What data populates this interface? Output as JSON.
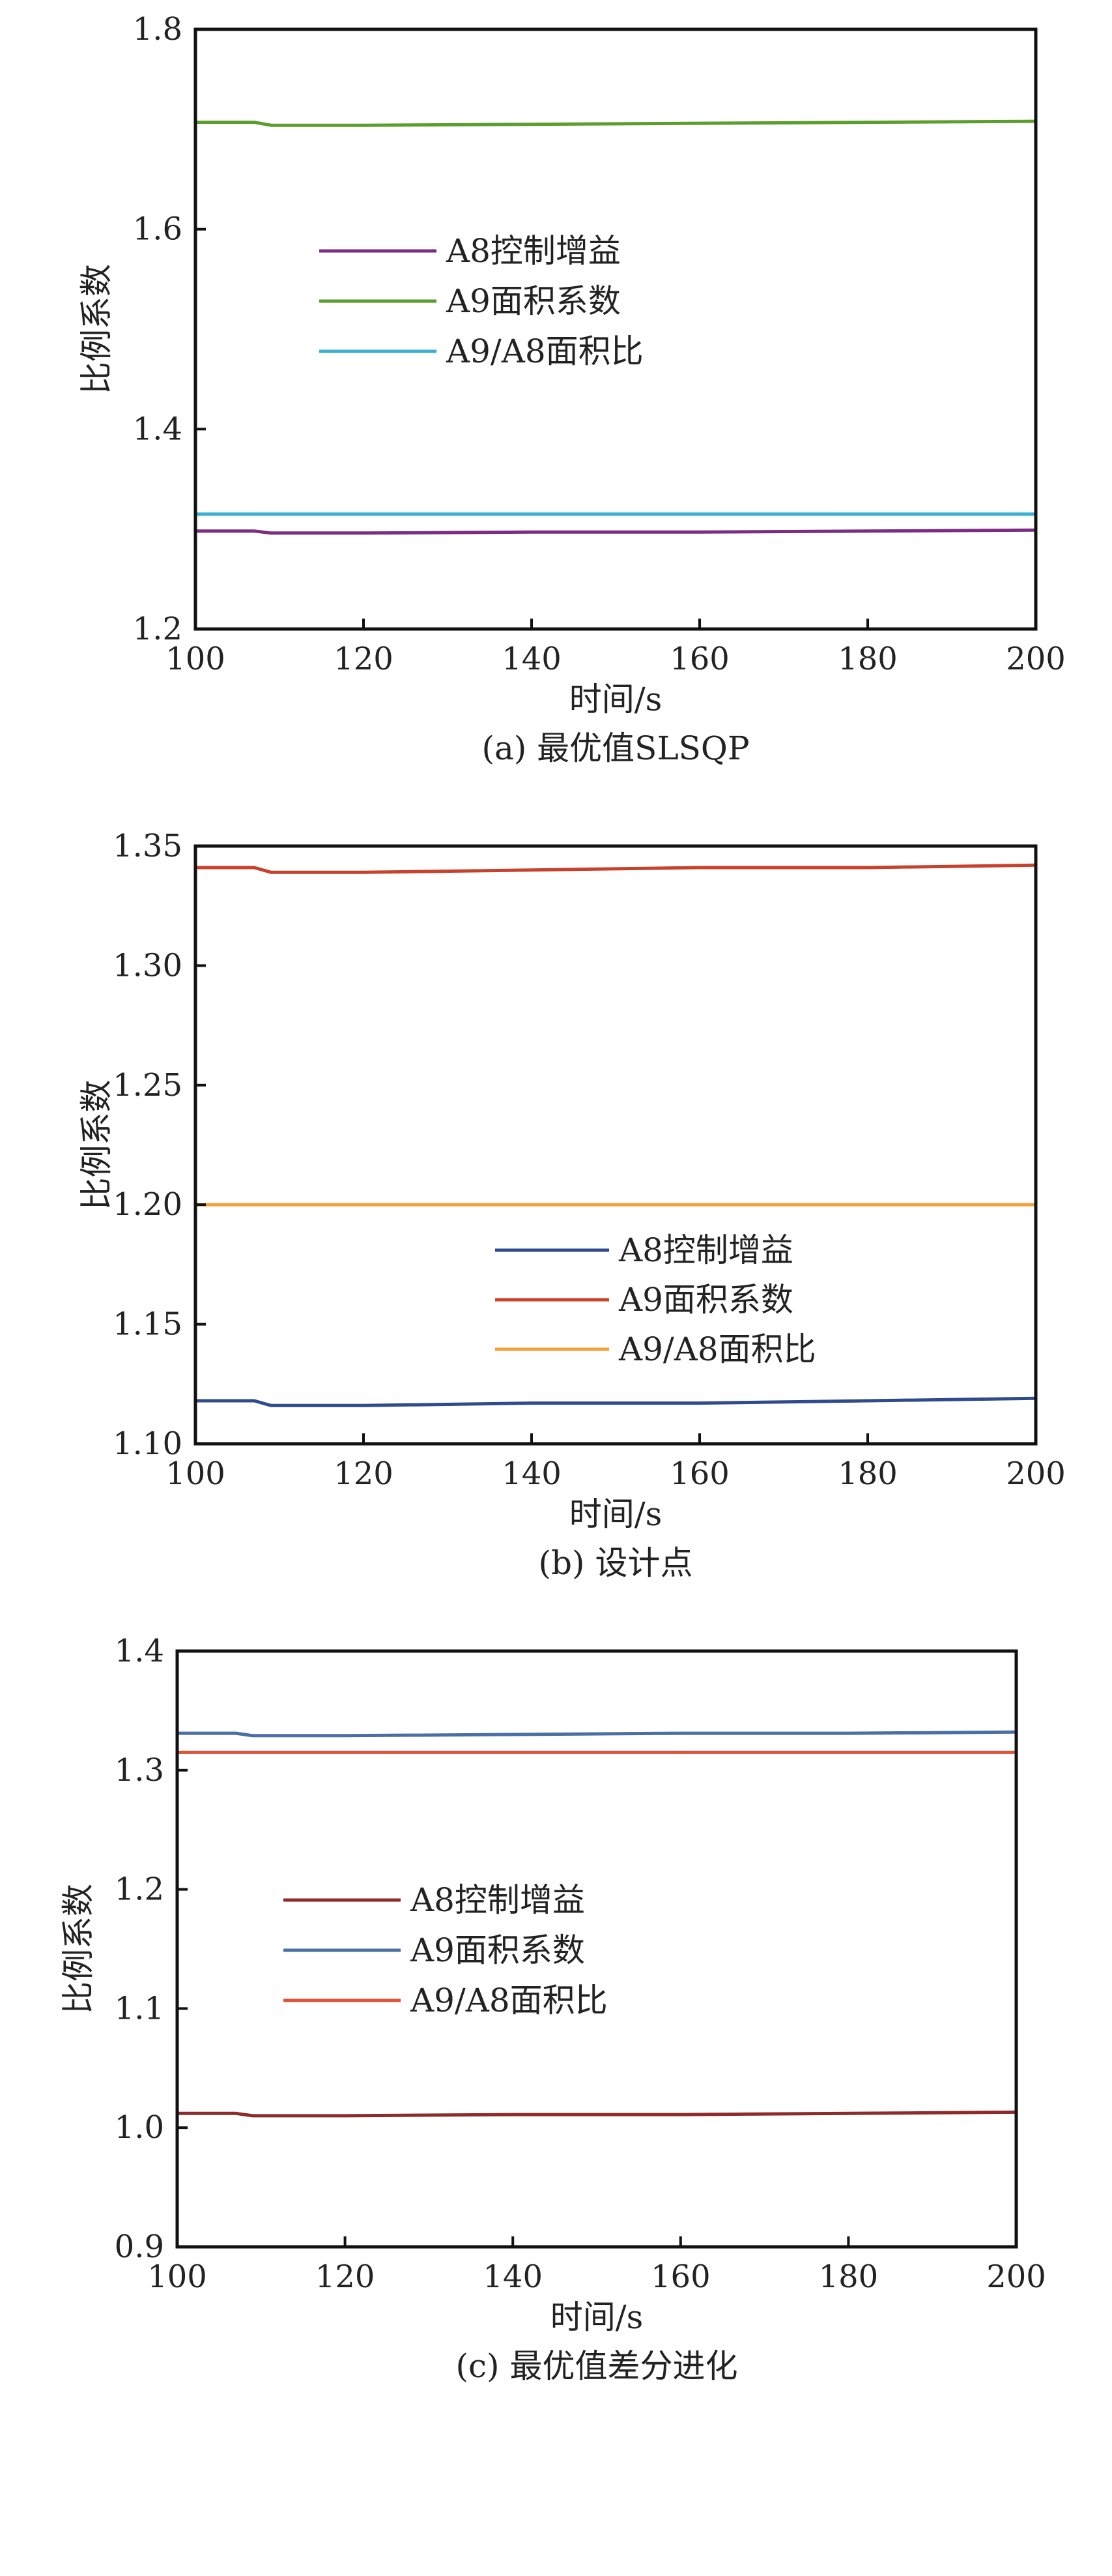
{
  "chart_data": [
    {
      "type": "line",
      "caption": "(a) 最优值SLSQP",
      "xlabel": "时间/s",
      "ylabel": "比例系数",
      "xlim": [
        100,
        200
      ],
      "ylim": [
        1.2,
        1.8
      ],
      "xticks": [
        100,
        120,
        140,
        160,
        180,
        200
      ],
      "yticks": [
        1.2,
        1.4,
        1.6,
        1.8
      ],
      "ytick_labels": [
        "1.2",
        "1.4",
        "1.6",
        "1.8"
      ],
      "legend_position": "center-left",
      "series": [
        {
          "name": "A8控制增益",
          "color": "#7B2D83",
          "x": [
            100,
            107,
            109,
            120,
            140,
            160,
            180,
            200
          ],
          "values": [
            1.298,
            1.298,
            1.296,
            1.296,
            1.297,
            1.297,
            1.298,
            1.299
          ]
        },
        {
          "name": "A9面积系数",
          "color": "#5C9E2E",
          "x": [
            100,
            107,
            109,
            120,
            140,
            160,
            180,
            200
          ],
          "values": [
            1.707,
            1.707,
            1.704,
            1.704,
            1.705,
            1.706,
            1.707,
            1.708
          ]
        },
        {
          "name": "A9/A8面积比",
          "color": "#3AAFD0",
          "x": [
            100,
            120,
            140,
            160,
            180,
            200
          ],
          "values": [
            1.315,
            1.315,
            1.315,
            1.315,
            1.315,
            1.315
          ]
        }
      ]
    },
    {
      "type": "line",
      "caption": "(b) 设计点",
      "xlabel": "时间/s",
      "ylabel": "比例系数",
      "xlim": [
        100,
        200
      ],
      "ylim": [
        1.1,
        1.35
      ],
      "xticks": [
        100,
        120,
        140,
        160,
        180,
        200
      ],
      "yticks": [
        1.1,
        1.15,
        1.2,
        1.25,
        1.3,
        1.35
      ],
      "ytick_labels": [
        "1.10",
        "1.15",
        "1.20",
        "1.25",
        "1.30",
        "1.35"
      ],
      "legend_position": "lower-center",
      "series": [
        {
          "name": "A8控制增益",
          "color": "#2F4B8C",
          "x": [
            100,
            107,
            109,
            120,
            140,
            160,
            180,
            200
          ],
          "values": [
            1.118,
            1.118,
            1.116,
            1.116,
            1.117,
            1.117,
            1.118,
            1.119
          ]
        },
        {
          "name": "A9面积系数",
          "color": "#C8412C",
          "x": [
            100,
            107,
            109,
            120,
            140,
            160,
            180,
            200
          ],
          "values": [
            1.341,
            1.341,
            1.339,
            1.339,
            1.34,
            1.341,
            1.341,
            1.342
          ]
        },
        {
          "name": "A9/A8面积比",
          "color": "#F0A23A",
          "x": [
            100,
            120,
            140,
            160,
            180,
            200
          ],
          "values": [
            1.2,
            1.2,
            1.2,
            1.2,
            1.2,
            1.2
          ]
        }
      ]
    },
    {
      "type": "line",
      "caption": "(c) 最优值差分进化",
      "xlabel": "时间/s",
      "ylabel": "比例系数",
      "xlim": [
        100,
        200
      ],
      "ylim": [
        0.9,
        1.4
      ],
      "xticks": [
        100,
        120,
        140,
        160,
        180,
        200
      ],
      "yticks": [
        0.9,
        1.0,
        1.1,
        1.2,
        1.3,
        1.4
      ],
      "ytick_labels": [
        "0.9",
        "1.0",
        "1.1",
        "1.2",
        "1.3",
        "1.4"
      ],
      "legend_position": "center-left",
      "series": [
        {
          "name": "A8控制增益",
          "color": "#8E2A2A",
          "x": [
            100,
            107,
            109,
            120,
            140,
            160,
            180,
            200
          ],
          "values": [
            1.012,
            1.012,
            1.01,
            1.01,
            1.011,
            1.011,
            1.012,
            1.013
          ]
        },
        {
          "name": "A9面积系数",
          "color": "#4A6FA5",
          "x": [
            100,
            107,
            109,
            120,
            140,
            160,
            180,
            200
          ],
          "values": [
            1.331,
            1.331,
            1.329,
            1.329,
            1.33,
            1.331,
            1.331,
            1.332
          ]
        },
        {
          "name": "A9/A8面积比",
          "color": "#E0533A",
          "x": [
            100,
            120,
            140,
            160,
            180,
            200
          ],
          "values": [
            1.315,
            1.315,
            1.315,
            1.315,
            1.315,
            1.315
          ]
        }
      ]
    }
  ]
}
